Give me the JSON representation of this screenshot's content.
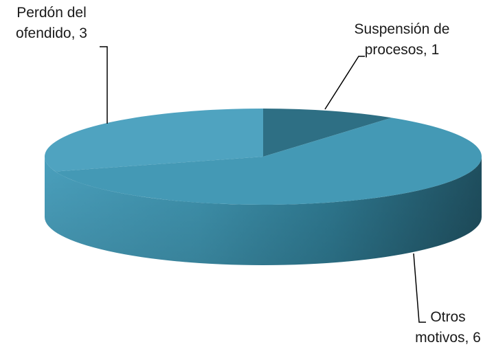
{
  "chart_data": {
    "type": "pie",
    "style": "3d",
    "title": "",
    "slices": [
      {
        "category": "Suspensión de procesos",
        "value": 1,
        "label_lines": [
          "Suspensión de",
          "procesos, 1"
        ],
        "color": "#2E6F84"
      },
      {
        "category": "Perdón del ofendido",
        "value": 3,
        "label_lines": [
          "Perdón del",
          "ofendido, 3"
        ],
        "color": "#4FA3C0"
      },
      {
        "category": "Otros motivos",
        "value": 6,
        "label_lines": [
          "Otros",
          "motivos, 6"
        ],
        "color": "#4499B5"
      }
    ],
    "legend": "none",
    "data_labels": "outside with leader lines"
  }
}
